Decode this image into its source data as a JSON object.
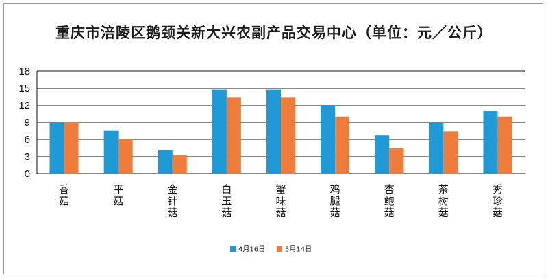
{
  "chart_data": {
    "type": "bar",
    "title": "重庆市涪陵区鹅颈关新大兴农副产品交易中心（单位：元／公斤）",
    "categories": [
      "香菇",
      "平菇",
      "金针菇",
      "白玉菇",
      "蟹味菇",
      "鸡腿菇",
      "杏鲍菇",
      "茶树菇",
      "秀珍菇"
    ],
    "series": [
      {
        "name": "4月16日",
        "color": "#1f9ad6",
        "values": [
          9,
          7.6,
          4.2,
          14.8,
          14.8,
          12,
          6.7,
          9,
          11
        ]
      },
      {
        "name": "5月14日",
        "color": "#ef7c3a",
        "values": [
          9,
          6,
          3.3,
          13.4,
          13.4,
          10,
          4.5,
          7.4,
          10
        ]
      }
    ],
    "y_ticks": [
      0,
      3,
      6,
      9,
      12,
      15,
      18
    ],
    "ylim": [
      0,
      18
    ],
    "grid": true,
    "legend_position": "bottom-center",
    "xlabel": "",
    "ylabel": ""
  }
}
